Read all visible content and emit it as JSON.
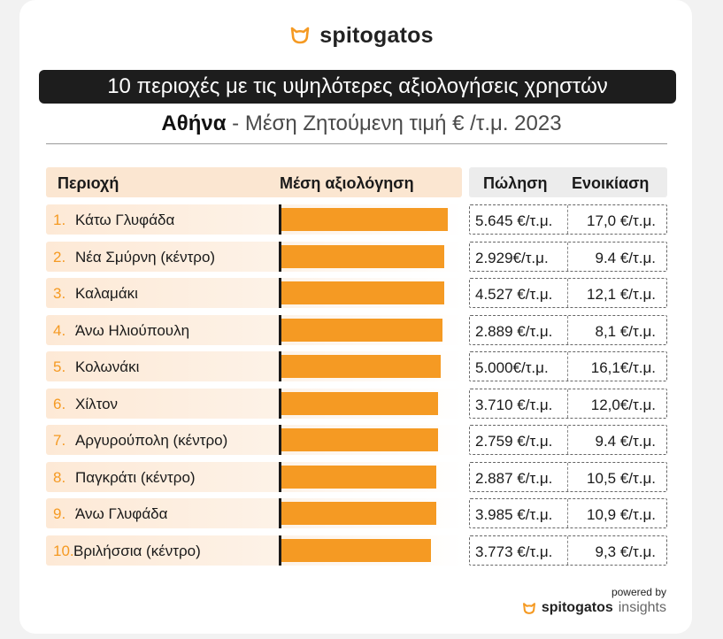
{
  "brand": {
    "name": "spitogatos",
    "insights": "insights",
    "powered_by": "powered by"
  },
  "title": "10 περιοχές με τις υψηλότερες αξιολογήσεις χρηστών",
  "subtitle": {
    "city": "Αθήνα",
    "rest": " - Μέση Ζητούμενη τιμή € /τ.μ. 2023"
  },
  "headers": {
    "area": "Περιοχή",
    "rating": "Μέση αξιολόγηση",
    "sale": "Πώληση",
    "rent": "Ενοικίαση"
  },
  "colors": {
    "accent": "#f59a23",
    "dark": "#1d1d1d",
    "header_bg": "#fbe6d1"
  },
  "chart_data": {
    "type": "bar",
    "orientation": "horizontal",
    "categories": [
      "Κάτω Γλυφάδα",
      "Νέα Σμύρνη (κέντρο)",
      "Καλαμάκι",
      "Άνω Ηλιούπουλη",
      "Κολωνάκι",
      "Χίλτον",
      "Αργυρούπολη (κέντρο)",
      "Παγκράτι (κέντρο)",
      "Άνω Γλυφάδα",
      "Βριλήσσια (κέντρο)"
    ],
    "ranks": [
      "1.",
      "2.",
      "3.",
      "4.",
      "5.",
      "6.",
      "7.",
      "8.",
      "9.",
      "10."
    ],
    "series": [
      {
        "values": [
          0.98,
          0.96,
          0.96,
          0.95,
          0.94,
          0.92,
          0.92,
          0.91,
          0.91,
          0.88
        ]
      }
    ],
    "xlim": [
      0,
      1
    ],
    "grid": false,
    "table": {
      "sale": [
        "5.645 €/τ.μ.",
        "2.929€/τ.μ.",
        "4.527 €/τ.μ.",
        "2.889 €/τ.μ.",
        "5.000€/τ.μ.",
        "3.710 €/τ.μ.",
        "2.759 €/τ.μ.",
        "2.887 €/τ.μ.",
        "3.985 €/τ.μ.",
        "3.773 €/τ.μ."
      ],
      "rent": [
        "17,0 €/τ.μ.",
        "9.4 €/τ.μ.",
        "12,1 €/τ.μ.",
        "8,1 €/τ.μ.",
        "16,1€/τ.μ.",
        "12,0€/τ.μ.",
        "9.4 €/τ.μ.",
        "10,5 €/τ.μ.",
        "10,9 €/τ.μ.",
        "9,3 €/τ.μ."
      ]
    }
  }
}
